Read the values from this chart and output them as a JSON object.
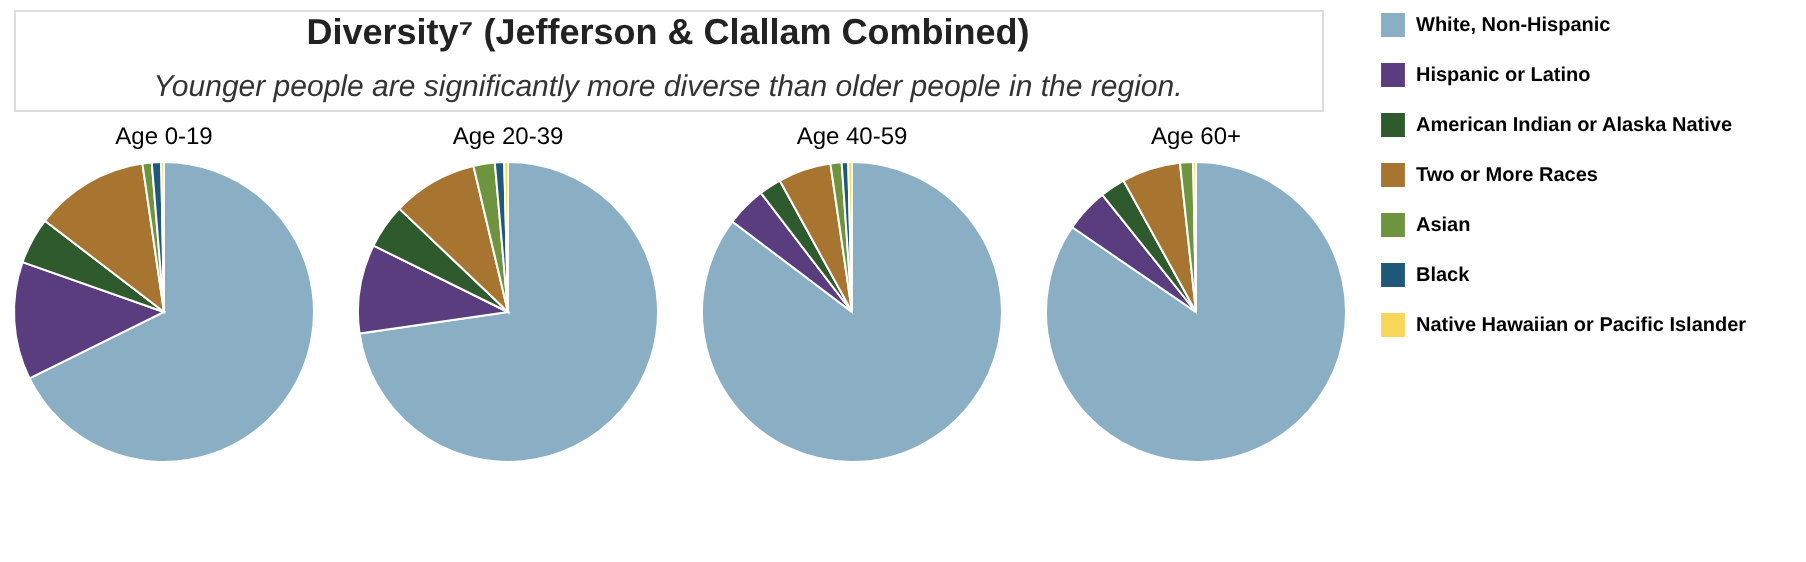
{
  "chart_data": [
    {
      "type": "other",
      "title": "Diversity⁷ (Jefferson & Clallam Combined)",
      "subtitle": "Younger people are significantly more diverse than older people in the region."
    },
    {
      "type": "pie",
      "title": "Age 0-19",
      "categories": [
        "White, Non-Hispanic",
        "Hispanic or Latino",
        "American Indian or Alaska Native",
        "Two or More Races",
        "Asian",
        "Black",
        "Native Hawaiian or Pacific Islander"
      ],
      "values": [
        67.7,
        12.7,
        5.0,
        12.3,
        1.0,
        1.0,
        0.3
      ],
      "colors": [
        "#8aafc5",
        "#5a3d7e",
        "#2e5a2e",
        "#a87530",
        "#6e9440",
        "#1f5878",
        "#f6d75a"
      ],
      "legend": "right"
    },
    {
      "type": "pie",
      "title": "Age 20-39",
      "categories": [
        null,
        null,
        null,
        null,
        null,
        null,
        null
      ],
      "values": [
        72.7,
        9.6,
        4.8,
        9.2,
        2.3,
        1.0,
        0.4
      ],
      "colors": [
        "#8aafc5",
        "#5a3d7e",
        "#2e5a2e",
        "#a87530",
        "#6e9440",
        "#1f5878",
        "#f6d75a"
      ]
    },
    {
      "type": "pie",
      "title": "Age 40-59",
      "categories": [
        null,
        null,
        null,
        null,
        null,
        null,
        null
      ],
      "values": [
        85.3,
        4.3,
        2.4,
        5.7,
        1.2,
        0.7,
        0.4
      ],
      "colors": [
        "#8aafc5",
        "#5a3d7e",
        "#2e5a2e",
        "#a87530",
        "#6e9440",
        "#1f5878",
        "#f6d75a"
      ]
    },
    {
      "type": "pie",
      "title": "Age 60+",
      "categories": [
        null,
        null,
        null,
        null,
        null,
        null,
        null
      ],
      "values": [
        84.3,
        4.7,
        2.7,
        6.3,
        1.4,
        null,
        0.3
      ],
      "colors": [
        "#8aafc5",
        "#5a3d7e",
        "#2e5a2e",
        "#a87530",
        "#6e9440",
        "#1f5878",
        "#f6d75a"
      ]
    }
  ]
}
